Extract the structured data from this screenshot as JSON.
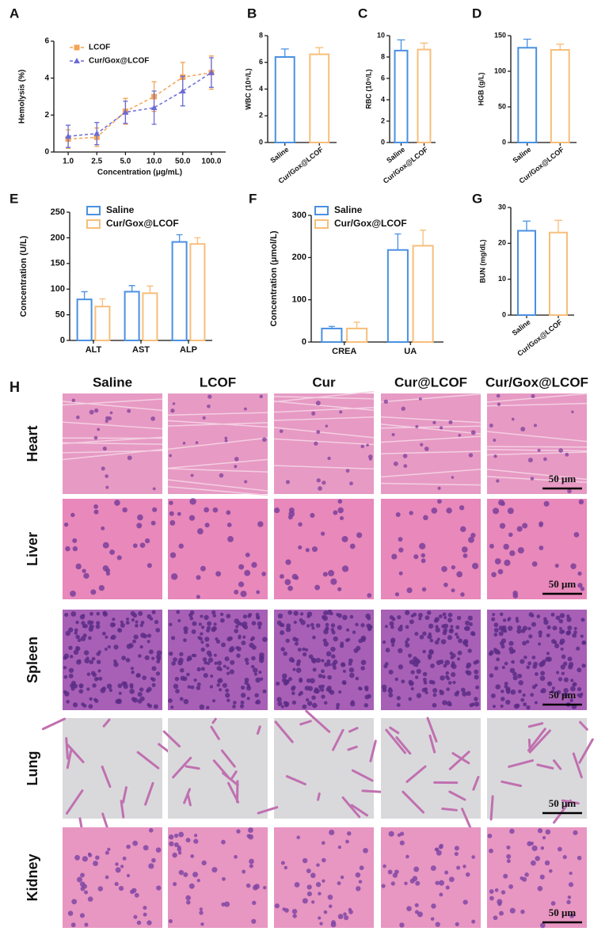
{
  "chart_data": [
    {
      "type": "line",
      "panel": "A",
      "x_label": "Concentration (μg/mL)",
      "y_label": "Hemolysis (%)",
      "categories": [
        "1.0",
        "2.5",
        "5.0",
        "10.0",
        "50.0",
        "100.0"
      ],
      "ylim": [
        0,
        6
      ],
      "yticks": [
        0,
        2,
        4,
        6
      ],
      "dashed": true,
      "series": [
        {
          "name": "LCOF",
          "color": "#f5a354",
          "marker": "square",
          "values": [
            0.7,
            0.8,
            2.2,
            3.0,
            4.05,
            4.3
          ],
          "errors": [
            0.5,
            0.5,
            0.7,
            0.8,
            0.8,
            0.9
          ]
        },
        {
          "name": "Cur/Gox@LCOF",
          "color": "#6b6bd6",
          "marker": "triangle",
          "values": [
            0.85,
            1.0,
            2.15,
            2.4,
            3.3,
            4.3
          ],
          "errors": [
            0.6,
            0.6,
            0.6,
            0.9,
            0.8,
            0.8
          ]
        }
      ]
    },
    {
      "type": "bar",
      "panel": "B",
      "y_label": "WBC (10⁹/L)",
      "categories": [
        "Saline",
        "Cur/Gox@LCOF"
      ],
      "values": [
        6.4,
        6.6
      ],
      "errors": [
        0.6,
        0.5
      ],
      "colors": [
        "#4a90e2",
        "#f7be7a"
      ],
      "ylim": [
        0,
        8
      ],
      "yticks": [
        0,
        2,
        4,
        6,
        8
      ]
    },
    {
      "type": "bar",
      "panel": "C",
      "y_label": "RBC (10⁹/L)",
      "categories": [
        "Saline",
        "Cur/Gox@LCOF"
      ],
      "values": [
        8.6,
        8.7
      ],
      "errors": [
        1.0,
        0.6
      ],
      "colors": [
        "#4a90e2",
        "#f7be7a"
      ],
      "ylim": [
        0,
        10
      ],
      "yticks": [
        0,
        2,
        4,
        6,
        8,
        10
      ]
    },
    {
      "type": "bar",
      "panel": "D",
      "y_label": "HGB (g/L)",
      "categories": [
        "Saline",
        "Cur/Gox@LCOF"
      ],
      "values": [
        133,
        130
      ],
      "errors": [
        12,
        8
      ],
      "colors": [
        "#4a90e2",
        "#f7be7a"
      ],
      "ylim": [
        0,
        150
      ],
      "yticks": [
        0,
        50,
        100,
        150
      ]
    },
    {
      "type": "bar",
      "panel": "E",
      "y_label": "Concentration (U/L)",
      "categories": [
        "ALT",
        "AST",
        "ALP"
      ],
      "ylim": [
        0,
        250
      ],
      "yticks": [
        0,
        50,
        100,
        150,
        200,
        250
      ],
      "series": [
        {
          "name": "Saline",
          "color": "#4a90e2",
          "values": [
            80,
            95,
            192
          ],
          "errors": [
            15,
            12,
            14
          ]
        },
        {
          "name": "Cur/Gox@LCOF",
          "color": "#f7be7a",
          "values": [
            66,
            92,
            188
          ],
          "errors": [
            15,
            14,
            12
          ]
        }
      ]
    },
    {
      "type": "bar",
      "panel": "F",
      "y_label": "Concentration (μmol/L)",
      "categories": [
        "CREA",
        "UA"
      ],
      "ylim": [
        0,
        300
      ],
      "yticks": [
        0,
        100,
        200,
        300
      ],
      "series": [
        {
          "name": "Saline",
          "color": "#4a90e2",
          "values": [
            32,
            218
          ],
          "errors": [
            5,
            38
          ]
        },
        {
          "name": "Cur/Gox@LCOF",
          "color": "#f7be7a",
          "values": [
            32,
            228
          ],
          "errors": [
            15,
            37
          ]
        }
      ]
    },
    {
      "type": "bar",
      "panel": "G",
      "y_label": "BUN (mg/dL)",
      "categories": [
        "Saline",
        "Cur/Gox@LCOF"
      ],
      "values": [
        23.5,
        23
      ],
      "errors": [
        2.7,
        3.4
      ],
      "colors": [
        "#4a90e2",
        "#f7be7a"
      ],
      "ylim": [
        0,
        30
      ],
      "yticks": [
        0,
        10,
        20,
        30
      ]
    }
  ],
  "histology": {
    "panel": "H",
    "columns": [
      "Saline",
      "LCOF",
      "Cur",
      "Cur@LCOF",
      "Cur/Gox@LCOF"
    ],
    "rows": [
      "Heart",
      "Liver",
      "Spleen",
      "Lung",
      "Kidney"
    ],
    "scale_bar": "50 μm"
  }
}
